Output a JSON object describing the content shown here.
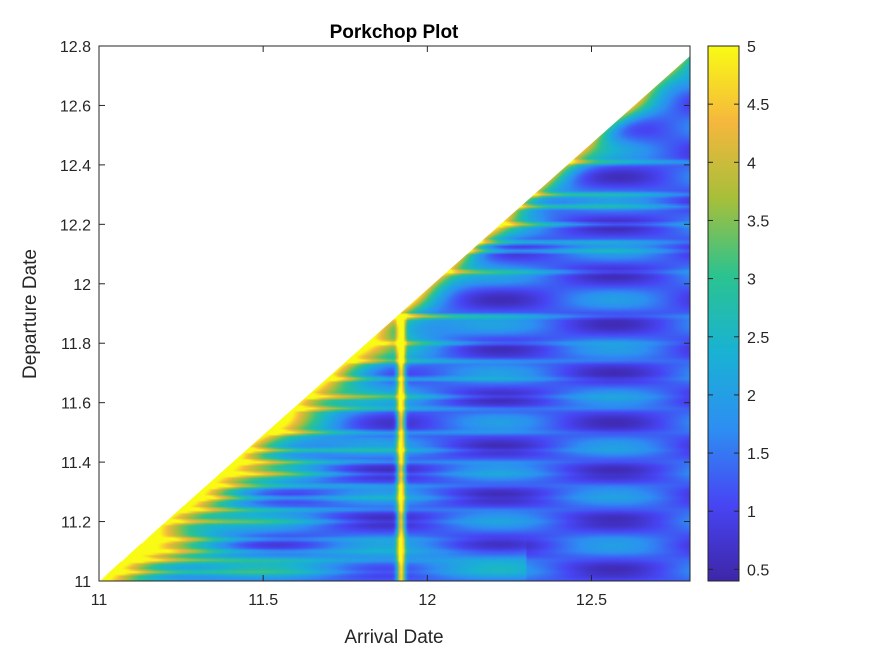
{
  "chart_data": {
    "type": "heatmap",
    "title": "Porkchop Plot",
    "xlabel": "Arrival Date",
    "ylabel": "Departure Date",
    "xlim": [
      11,
      12.8
    ],
    "ylim": [
      11,
      12.8
    ],
    "x_ticks": [
      {
        "value": 11,
        "label": "11"
      },
      {
        "value": 11.5,
        "label": "11.5"
      },
      {
        "value": 12,
        "label": "12"
      },
      {
        "value": 12.5,
        "label": "12.5"
      }
    ],
    "y_ticks": [
      {
        "value": 11,
        "label": "11"
      },
      {
        "value": 11.2,
        "label": "11.2"
      },
      {
        "value": 11.4,
        "label": "11.4"
      },
      {
        "value": 11.6,
        "label": "11.6"
      },
      {
        "value": 11.8,
        "label": "11.8"
      },
      {
        "value": 12,
        "label": "12"
      },
      {
        "value": 12.2,
        "label": "12.2"
      },
      {
        "value": 12.4,
        "label": "12.4"
      },
      {
        "value": 12.6,
        "label": "12.6"
      },
      {
        "value": 12.8,
        "label": "12.8"
      }
    ],
    "colorbar": {
      "range": [
        0.4,
        5
      ],
      "ticks": [
        {
          "value": 0.5,
          "label": "0.5"
        },
        {
          "value": 1,
          "label": "1"
        },
        {
          "value": 1.5,
          "label": "1.5"
        },
        {
          "value": 2,
          "label": "2"
        },
        {
          "value": 2.5,
          "label": "2.5"
        },
        {
          "value": 3,
          "label": "3"
        },
        {
          "value": 3.5,
          "label": "3.5"
        },
        {
          "value": 4,
          "label": "4"
        },
        {
          "value": 4.5,
          "label": "4.5"
        },
        {
          "value": 5,
          "label": "5"
        }
      ],
      "colormap": "parula",
      "colormap_colors": [
        "#3e26a8",
        "#4745f4",
        "#2d8ff2",
        "#19b2d3",
        "#2bc38f",
        "#a6bf3a",
        "#f5b73d",
        "#f9fb14"
      ]
    },
    "region": "lower-right triangle (arrival date > departure date); blank above the diagonal",
    "features": {
      "resonance_arrival": 11.92,
      "band_departures": [
        11.03,
        11.07,
        11.1,
        11.14,
        11.2,
        11.24,
        11.28,
        11.32,
        11.36,
        11.4,
        11.44,
        11.5,
        11.58,
        11.62,
        11.68,
        11.74,
        11.8,
        11.89,
        12.04,
        12.11,
        12.14,
        12.2,
        12.26,
        12.3,
        12.41
      ],
      "value_ranges": {
        "near_diagonal": 5,
        "typical_region": [
          0.5,
          2
        ],
        "resonance_ridge": 5
      }
    },
    "grid": false
  }
}
